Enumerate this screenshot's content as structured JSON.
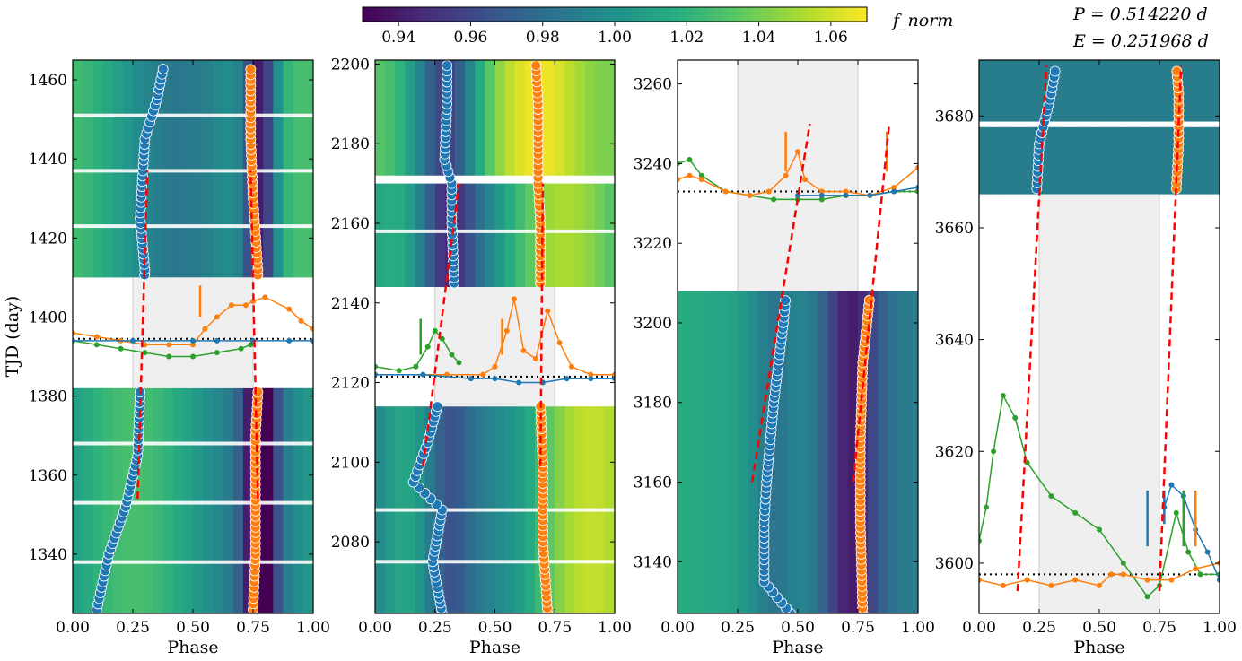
{
  "figure": {
    "ylabel": "TJD (day)",
    "xlabel": "Phase",
    "period_label": "P = 0.514220 d",
    "epoch_label": "E = 0.251968 d",
    "colorbar": {
      "label": "f_norm",
      "min": 0.93,
      "max": 1.07,
      "ticks": [
        "0.94",
        "0.96",
        "0.98",
        "1.00",
        "1.02",
        "1.04",
        "1.06"
      ],
      "colormap": "viridis"
    },
    "colors": {
      "blue": "#1f77b4",
      "orange": "#ff7f0e",
      "green": "#2ca02c",
      "fit_line": "#ff0000",
      "eclipse_shade": "#efefef"
    }
  },
  "chart_data": [
    {
      "type": "heatmap",
      "xlabel": "Phase",
      "ylabel": "TJD (day)",
      "xlim": [
        0,
        1
      ],
      "ylim": [
        1325,
        1465
      ],
      "xticks": [
        "0.00",
        "0.25",
        "0.50",
        "0.75",
        "1.00"
      ],
      "yticks": [
        "1340",
        "1360",
        "1380",
        "1400",
        "1420",
        "1440",
        "1460"
      ],
      "shaded_phase": [
        0.25,
        0.75
      ],
      "gap": [
        1382,
        1410
      ],
      "heat_bands": [
        [
          1325,
          1382
        ],
        [
          1410,
          1465
        ]
      ],
      "stripe_rows": [
        1338,
        1353,
        1368,
        1423,
        1437,
        1451
      ],
      "dark_phase": 0.78,
      "blue_track": [
        [
          0.1,
          1326
        ],
        [
          0.15,
          1340
        ],
        [
          0.22,
          1352
        ],
        [
          0.27,
          1365
        ],
        [
          0.28,
          1381
        ],
        [
          0.3,
          1412
        ],
        [
          0.28,
          1425
        ],
        [
          0.3,
          1445
        ],
        [
          0.35,
          1455
        ],
        [
          0.38,
          1464
        ]
      ],
      "orange_track": [
        [
          0.75,
          1326
        ],
        [
          0.76,
          1340
        ],
        [
          0.76,
          1355
        ],
        [
          0.76,
          1370
        ],
        [
          0.77,
          1381
        ],
        [
          0.77,
          1412
        ],
        [
          0.75,
          1430
        ],
        [
          0.74,
          1445
        ],
        [
          0.74,
          1464
        ]
      ],
      "fit_lines": [
        [
          [
            0.27,
            1354
          ],
          [
            0.31,
            1437
          ]
        ],
        [
          [
            0.77,
            1354
          ],
          [
            0.74,
            1437
          ]
        ]
      ],
      "flux_curves": {
        "baseline": 1394.5,
        "blue": [
          [
            0,
            1394
          ],
          [
            0.25,
            1394
          ],
          [
            0.5,
            1394
          ],
          [
            0.6,
            1394
          ],
          [
            0.75,
            1394
          ],
          [
            0.9,
            1394
          ],
          [
            1,
            1394
          ]
        ],
        "orange": [
          [
            0,
            1396
          ],
          [
            0.1,
            1395
          ],
          [
            0.2,
            1394
          ],
          [
            0.3,
            1393
          ],
          [
            0.4,
            1393
          ],
          [
            0.5,
            1393
          ],
          [
            0.55,
            1397
          ],
          [
            0.6,
            1400
          ],
          [
            0.66,
            1403
          ],
          [
            0.72,
            1403
          ],
          [
            0.75,
            1404
          ],
          [
            0.8,
            1405
          ],
          [
            0.9,
            1402
          ],
          [
            0.95,
            1399
          ],
          [
            1,
            1397
          ]
        ],
        "green": [
          [
            0,
            1394
          ],
          [
            0.1,
            1393
          ],
          [
            0.2,
            1392
          ],
          [
            0.3,
            1391
          ],
          [
            0.4,
            1390
          ],
          [
            0.5,
            1390
          ],
          [
            0.6,
            1391
          ],
          [
            0.7,
            1392
          ],
          [
            0.74,
            1393
          ]
        ],
        "ticks": [
          {
            "color": "orange",
            "phase": 0.53,
            "y0": 1400,
            "y1": 1408
          }
        ]
      }
    },
    {
      "type": "heatmap",
      "xlabel": "Phase",
      "xlim": [
        0,
        1
      ],
      "ylim": [
        2062,
        2201
      ],
      "xticks": [
        "0.00",
        "0.25",
        "0.50",
        "0.75",
        "1.00"
      ],
      "yticks": [
        "2080",
        "2100",
        "2120",
        "2140",
        "2160",
        "2180",
        "2200"
      ],
      "shaded_phase": [
        0.25,
        0.75
      ],
      "gap": [
        2114,
        2144
      ],
      "heat_bands": [
        [
          2062,
          2114
        ],
        [
          2144,
          2170
        ],
        [
          2172,
          2201
        ]
      ],
      "stripe_rows": [
        2075,
        2088,
        2158
      ],
      "dark_phase": 0.5,
      "blue_track": [
        [
          0.28,
          2062
        ],
        [
          0.24,
          2075
        ],
        [
          0.28,
          2088
        ],
        [
          0.16,
          2095
        ],
        [
          0.22,
          2105
        ],
        [
          0.26,
          2114
        ],
        [
          0.33,
          2145
        ],
        [
          0.32,
          2160
        ],
        [
          0.32,
          2170
        ],
        [
          0.29,
          2176
        ],
        [
          0.3,
          2190
        ],
        [
          0.3,
          2201
        ]
      ],
      "orange_track": [
        [
          0.72,
          2062
        ],
        [
          0.7,
          2080
        ],
        [
          0.7,
          2100
        ],
        [
          0.69,
          2114
        ],
        [
          0.69,
          2145
        ],
        [
          0.69,
          2160
        ],
        [
          0.68,
          2170
        ],
        [
          0.68,
          2176
        ],
        [
          0.68,
          2190
        ],
        [
          0.67,
          2201
        ]
      ],
      "fit_lines": [
        [
          [
            0.2,
            2099
          ],
          [
            0.35,
            2170
          ]
        ],
        [
          [
            0.69,
            2099
          ],
          [
            0.7,
            2170
          ]
        ]
      ],
      "flux_curves": {
        "baseline": 2121.5,
        "blue": [
          [
            0,
            2122
          ],
          [
            0.2,
            2122
          ],
          [
            0.4,
            2121
          ],
          [
            0.5,
            2121
          ],
          [
            0.6,
            2120
          ],
          [
            0.7,
            2120
          ],
          [
            0.8,
            2121
          ],
          [
            0.9,
            2121
          ],
          [
            1,
            2121
          ]
        ],
        "orange": [
          [
            0,
            2122
          ],
          [
            0.3,
            2122
          ],
          [
            0.45,
            2122
          ],
          [
            0.5,
            2124
          ],
          [
            0.55,
            2133
          ],
          [
            0.58,
            2141
          ],
          [
            0.62,
            2128
          ],
          [
            0.67,
            2126
          ],
          [
            0.72,
            2138
          ],
          [
            0.77,
            2130
          ],
          [
            0.82,
            2124
          ],
          [
            0.9,
            2122
          ],
          [
            1,
            2122
          ]
        ],
        "green": [
          [
            0,
            2124
          ],
          [
            0.1,
            2123
          ],
          [
            0.17,
            2124
          ],
          [
            0.22,
            2129
          ],
          [
            0.25,
            2133
          ],
          [
            0.28,
            2131
          ],
          [
            0.32,
            2127
          ],
          [
            0.35,
            2125
          ]
        ],
        "ticks": [
          {
            "color": "green",
            "phase": 0.19,
            "y0": 2127,
            "y1": 2136
          },
          {
            "color": "orange",
            "phase": 0.53,
            "y0": 2127,
            "y1": 2136
          }
        ]
      }
    },
    {
      "type": "heatmap",
      "xlabel": "Phase",
      "xlim": [
        0,
        1
      ],
      "ylim": [
        3127,
        3266
      ],
      "xticks": [
        "0.00",
        "0.25",
        "0.50",
        "0.75",
        "1.00"
      ],
      "yticks": [
        "3140",
        "3160",
        "3180",
        "3200",
        "3220",
        "3240",
        "3260"
      ],
      "shaded_phase": [
        0.25,
        0.75
      ],
      "gap": [
        3208,
        3266
      ],
      "heat_bands": [
        [
          3127,
          3208
        ]
      ],
      "stripe_rows": [],
      "dark_phase": 0.65,
      "blue_track": [
        [
          0.47,
          3127
        ],
        [
          0.36,
          3135
        ],
        [
          0.36,
          3150
        ],
        [
          0.37,
          3160
        ],
        [
          0.4,
          3180
        ],
        [
          0.44,
          3200
        ],
        [
          0.45,
          3207
        ]
      ],
      "orange_track": [
        [
          0.77,
          3127
        ],
        [
          0.76,
          3150
        ],
        [
          0.76,
          3170
        ],
        [
          0.77,
          3190
        ],
        [
          0.8,
          3207
        ]
      ],
      "fit_lines": [
        [
          [
            0.31,
            3160
          ],
          [
            0.55,
            3250
          ]
        ],
        [
          [
            0.73,
            3160
          ],
          [
            0.88,
            3250
          ]
        ]
      ],
      "flux_curves": {
        "baseline": 3233,
        "blue": [
          [
            0.5,
            3232
          ],
          [
            0.6,
            3232
          ],
          [
            0.7,
            3232
          ],
          [
            0.8,
            3232
          ],
          [
            0.9,
            3233
          ],
          [
            1,
            3234
          ]
        ],
        "orange": [
          [
            0,
            3236
          ],
          [
            0.05,
            3237
          ],
          [
            0.1,
            3236
          ],
          [
            0.2,
            3233
          ],
          [
            0.3,
            3232
          ],
          [
            0.38,
            3233
          ],
          [
            0.45,
            3237
          ],
          [
            0.5,
            3243
          ],
          [
            0.53,
            3236
          ],
          [
            0.6,
            3233
          ],
          [
            0.7,
            3233
          ],
          [
            0.8,
            3232
          ],
          [
            0.9,
            3234
          ],
          [
            1,
            3239
          ]
        ],
        "green": [
          [
            0,
            3240
          ],
          [
            0.05,
            3241
          ],
          [
            0.1,
            3237
          ],
          [
            0.2,
            3233
          ],
          [
            0.3,
            3232
          ],
          [
            0.4,
            3231
          ],
          [
            0.5,
            3231
          ],
          [
            0.6,
            3231
          ],
          [
            0.7,
            3232
          ],
          [
            0.8,
            3232
          ],
          [
            0.9,
            3233
          ],
          [
            1,
            3233
          ]
        ],
        "ticks": [
          {
            "color": "orange",
            "phase": 0.45,
            "y0": 3238,
            "y1": 3248
          },
          {
            "color": "orange",
            "phase": 0.87,
            "y0": 3238,
            "y1": 3248
          }
        ]
      }
    },
    {
      "type": "heatmap",
      "xlabel": "Phase",
      "xlim": [
        0,
        1
      ],
      "ylim": [
        3591,
        3690
      ],
      "xticks": [
        "0.00",
        "0.25",
        "0.50",
        "0.75",
        "1.00"
      ],
      "yticks": [
        "3600",
        "3620",
        "3640",
        "3660",
        "3680"
      ],
      "shaded_phase": [
        0.25,
        0.75
      ],
      "gap": [
        3591,
        3666
      ],
      "heat_bands": [
        [
          3666,
          3678
        ],
        [
          3679,
          3690
        ]
      ],
      "stripe_rows": [],
      "dark_phase": -1,
      "blue_track": [
        [
          0.24,
          3667
        ],
        [
          0.25,
          3675
        ],
        [
          0.3,
          3684
        ],
        [
          0.32,
          3689
        ]
      ],
      "orange_track": [
        [
          0.82,
          3667
        ],
        [
          0.83,
          3675
        ],
        [
          0.83,
          3684
        ],
        [
          0.82,
          3689
        ]
      ],
      "fit_lines": [
        [
          [
            0.16,
            3595
          ],
          [
            0.28,
            3689
          ]
        ],
        [
          [
            0.75,
            3595
          ],
          [
            0.84,
            3689
          ]
        ]
      ],
      "flux_curves": {
        "baseline": 3598,
        "blue": [
          [
            0.77,
            3610
          ],
          [
            0.8,
            3614
          ],
          [
            0.85,
            3612
          ],
          [
            0.9,
            3606
          ],
          [
            0.95,
            3602
          ],
          [
            1,
            3597
          ]
        ],
        "orange": [
          [
            0,
            3597
          ],
          [
            0.1,
            3596
          ],
          [
            0.2,
            3597
          ],
          [
            0.3,
            3596
          ],
          [
            0.4,
            3597
          ],
          [
            0.5,
            3596
          ],
          [
            0.55,
            3598
          ],
          [
            0.6,
            3598
          ],
          [
            0.7,
            3597
          ],
          [
            0.8,
            3597
          ],
          [
            0.9,
            3599
          ],
          [
            1,
            3600
          ]
        ],
        "green": [
          [
            0,
            3604
          ],
          [
            0.03,
            3610
          ],
          [
            0.06,
            3620
          ],
          [
            0.1,
            3630
          ],
          [
            0.15,
            3626
          ],
          [
            0.2,
            3618
          ],
          [
            0.3,
            3612
          ],
          [
            0.4,
            3609
          ],
          [
            0.5,
            3606
          ],
          [
            0.6,
            3600
          ],
          [
            0.7,
            3594
          ],
          [
            0.75,
            3596
          ],
          [
            0.82,
            3609
          ],
          [
            0.87,
            3602
          ],
          [
            0.92,
            3598
          ],
          [
            1,
            3598
          ]
        ],
        "ticks": [
          {
            "color": "blue",
            "phase": 0.7,
            "y0": 3603,
            "y1": 3613
          },
          {
            "color": "blue",
            "phase": 0.77,
            "y0": 3607,
            "y1": 3613
          },
          {
            "color": "green",
            "phase": 0.85,
            "y0": 3603,
            "y1": 3613
          },
          {
            "color": "orange",
            "phase": 0.9,
            "y0": 3603,
            "y1": 3613
          }
        ]
      }
    }
  ]
}
